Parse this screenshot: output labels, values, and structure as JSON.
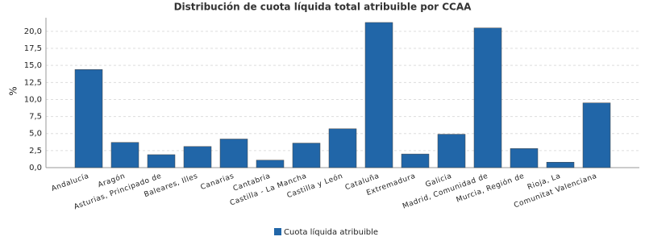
{
  "chart_data": {
    "type": "bar",
    "title": "Distribución de cuota líquida total atribuible por CCAA",
    "y_label": "%",
    "categories": [
      "Andalucía",
      "Aragón",
      "Asturias, Principado de",
      "Baleares, Illes",
      "Canarias",
      "Cantabria",
      "Castilla - La Mancha",
      "Castilla y León",
      "Cataluña",
      "Extremadura",
      "Galicia",
      "Madrid, Comunidad de",
      "Murcia, Región de",
      "Rioja, La",
      "Comunitat Valenciana"
    ],
    "series": [
      {
        "name": "Cuota líquida atribuible",
        "color": "#2166a8",
        "values": [
          14.4,
          3.7,
          1.9,
          3.1,
          4.2,
          1.1,
          3.6,
          5.7,
          21.3,
          2.0,
          4.9,
          20.5,
          2.8,
          0.8,
          9.5
        ]
      }
    ],
    "ylim": [
      0,
      22
    ],
    "yticks": [
      {
        "value": 0,
        "label": "0,0"
      },
      {
        "value": 2.5,
        "label": "2,5"
      },
      {
        "value": 5,
        "label": "5,0"
      },
      {
        "value": 7.5,
        "label": "7,5"
      },
      {
        "value": 10,
        "label": "10,0"
      },
      {
        "value": 12.5,
        "label": "12,5"
      },
      {
        "value": 15,
        "label": "15,0"
      },
      {
        "value": 17.5,
        "label": "17,5"
      },
      {
        "value": 20,
        "label": "20,0"
      }
    ],
    "grid": true
  }
}
